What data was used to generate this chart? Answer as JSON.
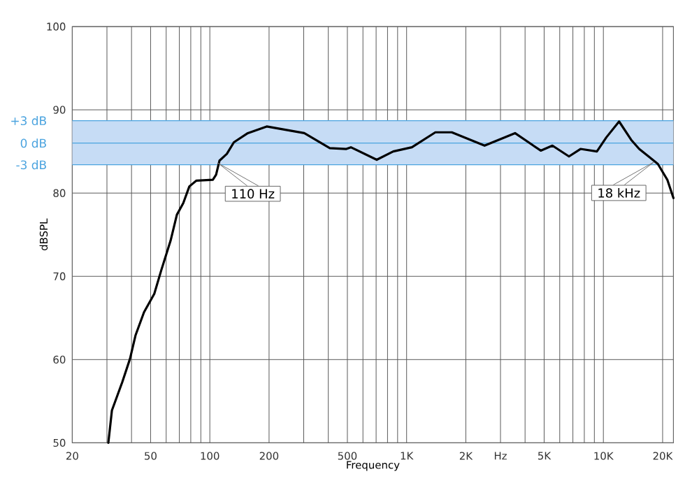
{
  "chart_data": {
    "type": "line",
    "xlabel": "Frequency",
    "ylabel": "dBSPL",
    "log": "x",
    "grid": true,
    "xlim": [
      20,
      22700
    ],
    "ylim": [
      50,
      100
    ],
    "xticks": [
      20,
      50,
      100,
      200,
      500,
      {
        "value": 1000,
        "label": "1K"
      },
      {
        "value": 2000,
        "label": "2K"
      },
      {
        "value": 3000,
        "label": "Hz"
      },
      {
        "value": 5000,
        "label": "5K"
      },
      {
        "value": 10000,
        "label": "10K"
      },
      {
        "value": 20000,
        "label": "20K"
      }
    ],
    "yticks": [
      50,
      60,
      70,
      80,
      90,
      100
    ],
    "bands": [
      {
        "axis": "y",
        "from": 83.4,
        "to": 88.7,
        "color": "#c6dcf5"
      }
    ],
    "ref_lines": [
      {
        "axis": "y",
        "value": 88.7,
        "label": "+3 dB",
        "color": "#4aa3df"
      },
      {
        "axis": "y",
        "value": 86,
        "label": "0 dB",
        "color": "#4aa3df"
      },
      {
        "axis": "y",
        "value": 83.4,
        "label": "-3 dB",
        "color": "#4aa3df"
      }
    ],
    "annotations": [
      {
        "text": "110 Hz",
        "x": 110,
        "y": 83.6
      },
      {
        "text": "18 kHz",
        "x": 18000,
        "y": 83.7
      }
    ],
    "series": [
      {
        "color": "#000000",
        "x": [
          30.5,
          31.8,
          35.9,
          39.3,
          41.9,
          46.3,
          52.2,
          56.6,
          63.2,
          68,
          73.3,
          78.7,
          85.5,
          103.6,
          107.6,
          112,
          122,
          132.5,
          156,
          194.5,
          302,
          407,
          494,
          521,
          705,
          855,
          1064,
          1400,
          1697,
          2490,
          3556,
          4805,
          5508,
          6686,
          7653,
          9270,
          10360,
          12020,
          13840,
          15200,
          16970,
          18920,
          21130,
          22700
        ],
        "values": [
          50,
          53.9,
          57.3,
          60.1,
          62.9,
          65.7,
          67.9,
          70.7,
          74.3,
          77.4,
          78.8,
          80.8,
          81.5,
          81.6,
          82.2,
          83.9,
          84.7,
          86.1,
          87.2,
          88,
          87.2,
          85.4,
          85.3,
          85.5,
          84,
          85,
          85.5,
          87.3,
          87.3,
          85.7,
          87.2,
          85.1,
          85.7,
          84.4,
          85.3,
          85,
          86.7,
          88.6,
          86.4,
          85.3,
          84.4,
          83.5,
          81.6,
          79.4
        ]
      }
    ]
  }
}
